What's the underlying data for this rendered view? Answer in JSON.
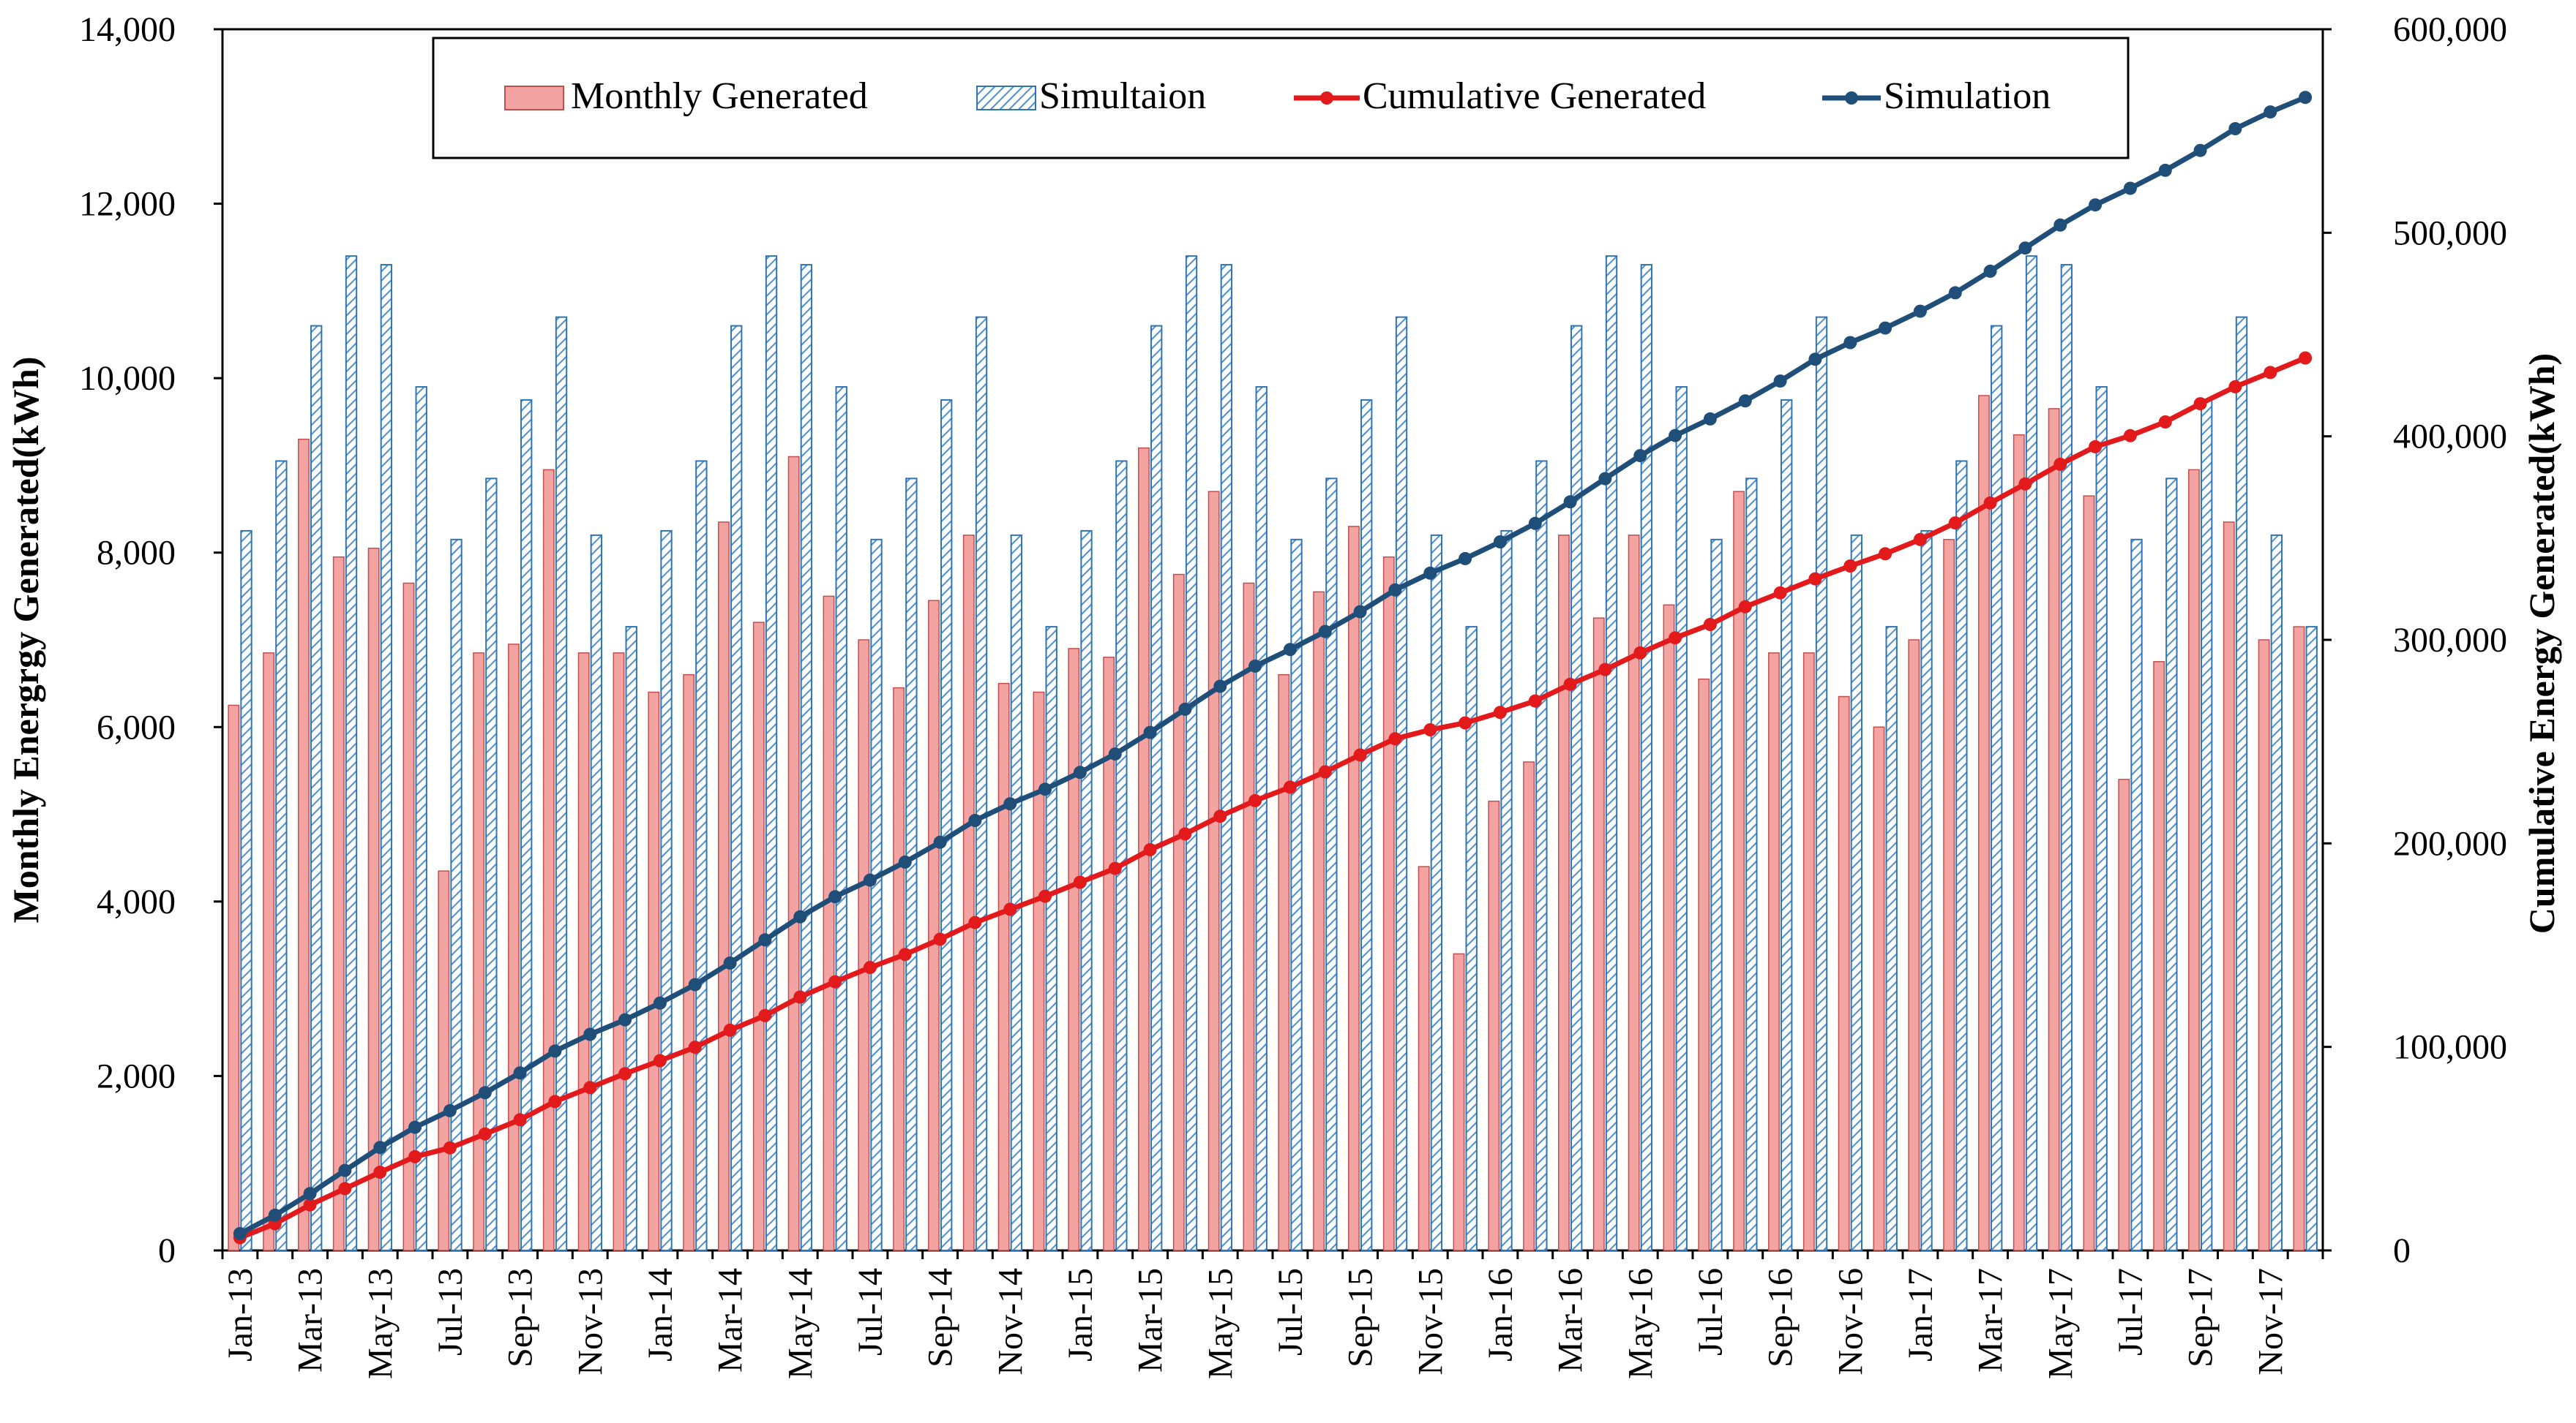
{
  "chart_data": {
    "type": "bar+line",
    "title": "",
    "xlabel": "",
    "ylabel_left": "Monthly Energrgy Generated(kWh)",
    "ylabel_right": "Cumulative Energy Generated(kWh)",
    "ylim_left": [
      0,
      14000
    ],
    "ylim_right": [
      0,
      600000
    ],
    "yticks_left": [
      "0",
      "2,000",
      "4,000",
      "6,000",
      "8,000",
      "10,000",
      "12,000",
      "14,000"
    ],
    "yticks_right": [
      "0",
      "100,000",
      "200,000",
      "300,000",
      "400,000",
      "500,000",
      "600,000"
    ],
    "grid": false,
    "legend_position": "top",
    "colors": {
      "monthly_fill": "#f4a3a3",
      "monthly_stroke": "#c0504d",
      "simulation_bar_stroke": "#2e75b6",
      "cumulative_line": "#e31a1c",
      "simulation_line": "#1f4e79"
    },
    "categories": [
      "Jan-13",
      "Feb-13",
      "Mar-13",
      "Apr-13",
      "May-13",
      "Jun-13",
      "Jul-13",
      "Aug-13",
      "Sep-13",
      "Oct-13",
      "Nov-13",
      "Dec-13",
      "Jan-14",
      "Feb-14",
      "Mar-14",
      "Apr-14",
      "May-14",
      "Jun-14",
      "Jul-14",
      "Aug-14",
      "Sep-14",
      "Oct-14",
      "Nov-14",
      "Dec-14",
      "Jan-15",
      "Feb-15",
      "Mar-15",
      "Apr-15",
      "May-15",
      "Jun-15",
      "Jul-15",
      "Aug-15",
      "Sep-15",
      "Oct-15",
      "Nov-15",
      "Dec-15",
      "Jan-16",
      "Feb-16",
      "Mar-16",
      "Apr-16",
      "May-16",
      "Jun-16",
      "Jul-16",
      "Aug-16",
      "Sep-16",
      "Oct-16",
      "Nov-16",
      "Dec-16",
      "Jan-17",
      "Feb-17",
      "Mar-17",
      "Apr-17",
      "May-17",
      "Jun-17",
      "Jul-17",
      "Aug-17",
      "Sep-17",
      "Oct-17",
      "Nov-17",
      "Dec-17"
    ],
    "x_tick_labels": [
      "Jan-13",
      "Mar-13",
      "May-13",
      "Jul-13",
      "Sep-13",
      "Nov-13",
      "Jan-14",
      "Mar-14",
      "May-14",
      "Jul-14",
      "Sep-14",
      "Nov-14",
      "Jan-15",
      "Mar-15",
      "May-15",
      "Jul-15",
      "Sep-15",
      "Nov-15",
      "Jan-16",
      "Mar-16",
      "May-16",
      "Jul-16",
      "Sep-16",
      "Nov-16",
      "Jan-17",
      "Mar-17",
      "May-17",
      "Jul-17",
      "Sep-17",
      "Nov-17"
    ],
    "legend": [
      "Monthly Generated",
      "Simultaion",
      "Cumulative Generated",
      "Simulation"
    ],
    "series": [
      {
        "name": "Monthly Generated",
        "axis": "left",
        "kind": "bar",
        "values": [
          6250,
          6850,
          9300,
          7950,
          8050,
          7650,
          4350,
          6850,
          6950,
          8950,
          6850,
          6850,
          6400,
          6600,
          8350,
          7200,
          9100,
          7500,
          7000,
          6450,
          7450,
          8200,
          6500,
          6400,
          6900,
          6800,
          9200,
          7750,
          8700,
          7650,
          6600,
          7550,
          8300,
          7950,
          4400,
          3400,
          5150,
          5600,
          8200,
          7250,
          8200,
          7400,
          6550,
          8700,
          6850,
          6850,
          6350,
          6000,
          7000,
          8150,
          9800,
          9350,
          9650,
          8650,
          5400,
          6750,
          8950,
          8350,
          7000,
          7150
        ]
      },
      {
        "name": "Simultaion",
        "axis": "left",
        "kind": "bar",
        "values": [
          8250,
          9050,
          10600,
          11400,
          11300,
          9900,
          8150,
          8850,
          9750,
          10700,
          8200,
          7150,
          8250,
          9050,
          10600,
          11400,
          11300,
          9900,
          8150,
          8850,
          9750,
          10700,
          8200,
          7150,
          8250,
          9050,
          10600,
          11400,
          11300,
          9900,
          8150,
          8850,
          9750,
          10700,
          8200,
          7150,
          8250,
          9050,
          10600,
          11400,
          11300,
          9900,
          8150,
          8850,
          9750,
          10700,
          8200,
          7150,
          8250,
          9050,
          10600,
          11400,
          11300,
          9900,
          8150,
          8850,
          9750,
          10700,
          8200,
          7150
        ]
      },
      {
        "name": "Cumulative Generated",
        "axis": "right",
        "kind": "line",
        "values": [
          6250,
          13100,
          22400,
          30350,
          38400,
          46050,
          50400,
          57250,
          64200,
          73150,
          80000,
          86850,
          93250,
          99850,
          108200,
          115400,
          124500,
          132000,
          139000,
          145450,
          152900,
          161100,
          167600,
          174000,
          180900,
          187700,
          196900,
          204650,
          213350,
          221000,
          227600,
          235150,
          243450,
          251400,
          255800,
          259200,
          264350,
          269950,
          278150,
          285400,
          293600,
          301000,
          307550,
          316250,
          323100,
          329950,
          336300,
          342300,
          349300,
          357450,
          367250,
          376600,
          386250,
          394900,
          400300,
          407050,
          416000,
          424350,
          431350,
          438500
        ]
      },
      {
        "name": "Simulation",
        "axis": "right",
        "kind": "line",
        "values": [
          8250,
          17300,
          27900,
          39300,
          50600,
          60500,
          68650,
          77500,
          87250,
          97950,
          106150,
          113300,
          121550,
          130600,
          141200,
          152600,
          163900,
          173800,
          181950,
          190800,
          200550,
          211250,
          219450,
          226600,
          234850,
          243900,
          254500,
          265900,
          277200,
          287100,
          295250,
          304100,
          313850,
          324550,
          332750,
          339900,
          348150,
          357200,
          367800,
          379200,
          390500,
          400400,
          408550,
          417400,
          427150,
          437850,
          446050,
          453200,
          461450,
          470500,
          481100,
          492500,
          503800,
          513700,
          521850,
          530700,
          540450,
          551150,
          559350,
          566500
        ]
      }
    ]
  }
}
